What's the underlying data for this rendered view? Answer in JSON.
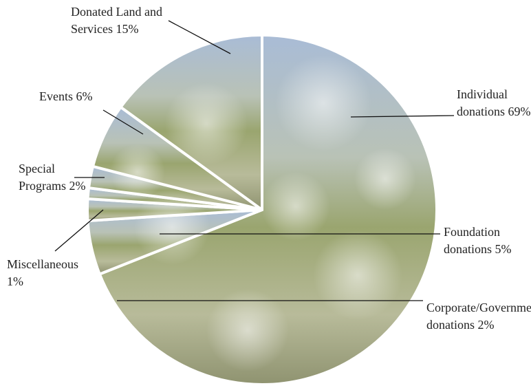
{
  "chart_data": {
    "type": "pie",
    "categories": [
      "Individual donations",
      "Foundation donations",
      "Corporate/Government donations",
      "Miscellaneous",
      "Special Programs",
      "Events",
      "Donated Land and Services"
    ],
    "values": [
      69,
      5,
      2,
      1,
      2,
      6,
      15
    ],
    "value_labels": [
      "69%",
      "5%",
      "2%",
      "1%",
      "2%",
      "6%",
      "15%"
    ]
  }
}
